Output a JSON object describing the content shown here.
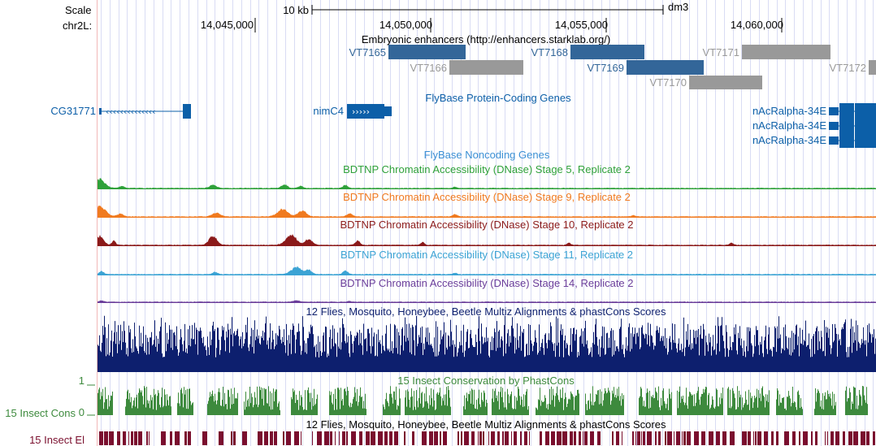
{
  "header": {
    "scale_label": "Scale",
    "chrom_label": "chr2L:",
    "scalebar_label": "10 kb",
    "assembly": "dm3",
    "positions": [
      "14,045,000",
      "14,050,000",
      "14,055,000",
      "14,060,000"
    ]
  },
  "enhancers": {
    "title": "Embryonic enhancers (http://enhancers.starklab.org/)",
    "items": [
      {
        "id": "VT7165",
        "color": "#336699"
      },
      {
        "id": "VT7166",
        "color": "#999999"
      },
      {
        "id": "VT7168",
        "color": "#336699"
      },
      {
        "id": "VT7169",
        "color": "#336699"
      },
      {
        "id": "VT7170",
        "color": "#999999"
      },
      {
        "id": "VT7171",
        "color": "#999999"
      },
      {
        "id": "VT7172",
        "color": "#999999"
      }
    ]
  },
  "genes": {
    "title": "FlyBase Protein-Coding Genes",
    "color": "#0c5fa8",
    "items": [
      "CG31771",
      "nimC4",
      "nAcRalpha-34E",
      "nAcRalpha-34E",
      "nAcRalpha-34E"
    ]
  },
  "noncoding": {
    "title": "FlyBase Noncoding Genes",
    "color": "#3b8fd4"
  },
  "dnase": [
    {
      "title": "BDTNP Chromatin Accessibility (DNase) Stage 5, Replicate 2",
      "color": "#2fa13a"
    },
    {
      "title": "BDTNP Chromatin Accessibility (DNase) Stage 9, Replicate 2",
      "color": "#f07a1f"
    },
    {
      "title": "BDTNP Chromatin Accessibility (DNase) Stage 10, Replicate 2",
      "color": "#8b1a1a"
    },
    {
      "title": "BDTNP Chromatin Accessibility (DNase) Stage 11, Replicate 2",
      "color": "#3ba3d4"
    },
    {
      "title": "BDTNP Chromatin Accessibility (DNase) Stage 14, Replicate 2",
      "color": "#6a3d9a"
    }
  ],
  "multiz": {
    "title": "12 Flies, Mosquito, Honeybee, Beetle Multiz Alignments & phastCons Scores",
    "color": "#0d1f6e"
  },
  "phastcons": {
    "title": "15 Insect Conservation by PhastCons",
    "side_label": "15 Insect Cons",
    "ymax": "1",
    "ymin": "0",
    "color": "#3d8a3d"
  },
  "elements": {
    "title": "12 Flies, Mosquito, Honeybee, Beetle Multiz Alignments & phastCons Scores",
    "side_label": "15 Insect El",
    "color": "#7a0f2e"
  }
}
